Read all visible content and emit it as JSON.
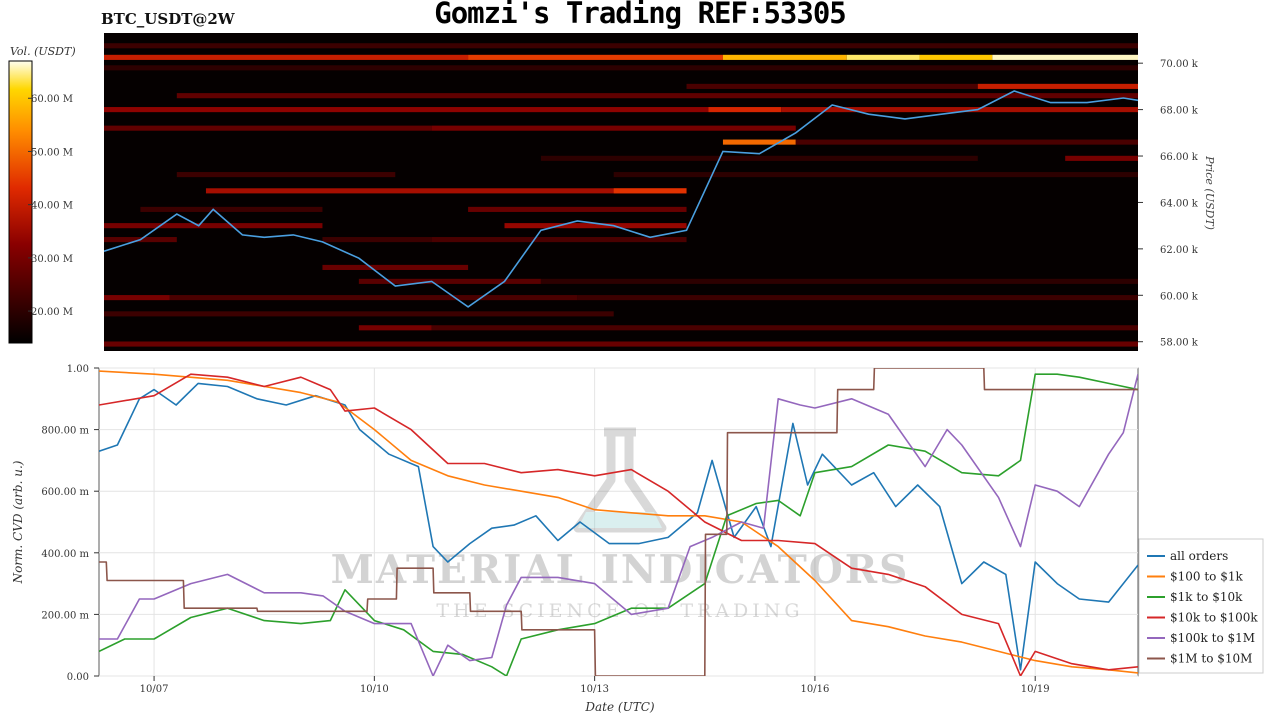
{
  "header": {
    "title": "Gomzi's Trading REF:53305",
    "pair": "BTC_USDT@2W"
  },
  "watermark": {
    "line1": "MATERIAL INDICATORS",
    "line2": "THE SCIENCE OF TRADING"
  },
  "chart_data": [
    {
      "type": "heatmap",
      "title": "BTC_USDT@2W",
      "colorbar": {
        "label": "Vol. (USDT)",
        "ticks": [
          "20.00 M",
          "30.00 M",
          "40.00 M",
          "50.00 M",
          "60.00 M"
        ],
        "range": [
          14,
          67
        ]
      },
      "ylabel": "Price (USDT)",
      "yticks": [
        "58.00 k",
        "60.00 k",
        "62.00 k",
        "64.00 k",
        "66.00 k",
        "68.00 k",
        "70.00 k"
      ],
      "ylim": [
        57.6,
        71.3
      ],
      "xlim": [
        0,
        14.2
      ],
      "price_line": {
        "color": "#4a9fe0",
        "x": [
          0,
          0.5,
          1,
          1.3,
          1.5,
          1.9,
          2.2,
          2.6,
          3.0,
          3.5,
          4.0,
          4.5,
          5.0,
          5.5,
          6.0,
          6.5,
          7.0,
          7.5,
          8.0,
          8.5,
          9.0,
          9.5,
          10.0,
          10.5,
          11.0,
          11.5,
          12.0,
          12.5,
          13.0,
          13.5,
          14.0,
          14.2
        ],
        "y": [
          61.9,
          62.4,
          63.5,
          63.0,
          63.7,
          62.6,
          62.5,
          62.6,
          62.3,
          61.6,
          60.4,
          60.6,
          59.5,
          60.6,
          62.8,
          63.2,
          63.0,
          62.5,
          62.8,
          66.2,
          66.1,
          67.0,
          68.2,
          67.8,
          67.6,
          67.8,
          68.0,
          68.8,
          68.3,
          68.3,
          68.5,
          68.4
        ]
      },
      "bands": [
        {
          "price": 70.75,
          "segments": [
            [
              0,
              14.2,
              22
            ]
          ]
        },
        {
          "price": 70.25,
          "segments": [
            [
              0,
              5,
              40
            ],
            [
              5,
              8.5,
              45
            ],
            [
              8.5,
              10.2,
              58
            ],
            [
              10.2,
              11.2,
              64
            ],
            [
              11.2,
              12.2,
              60
            ],
            [
              12.2,
              14.2,
              66
            ]
          ]
        },
        {
          "price": 69.8,
          "segments": [
            [
              0,
              14.2,
              20
            ]
          ]
        },
        {
          "price": 69.0,
          "segments": [
            [
              8,
              12,
              24
            ],
            [
              12,
              14.2,
              40
            ]
          ]
        },
        {
          "price": 68.6,
          "segments": [
            [
              1,
              14.2,
              27
            ]
          ]
        },
        {
          "price": 68.0,
          "segments": [
            [
              0,
              8.3,
              33
            ],
            [
              8.3,
              9.3,
              42
            ],
            [
              9.3,
              14.2,
              36
            ]
          ]
        },
        {
          "price": 67.2,
          "segments": [
            [
              0,
              4.5,
              27
            ],
            [
              4.5,
              9.5,
              30
            ]
          ]
        },
        {
          "price": 66.6,
          "segments": [
            [
              8.5,
              9.5,
              50
            ],
            [
              9.5,
              14.2,
              24
            ]
          ]
        },
        {
          "price": 65.9,
          "segments": [
            [
              6,
              12,
              20
            ],
            [
              13.2,
              14.2,
              30
            ]
          ]
        },
        {
          "price": 65.2,
          "segments": [
            [
              1,
              4,
              22
            ],
            [
              7,
              14.2,
              20
            ]
          ]
        },
        {
          "price": 64.5,
          "segments": [
            [
              1.4,
              8,
              36
            ],
            [
              7,
              8,
              44
            ]
          ]
        },
        {
          "price": 63.7,
          "segments": [
            [
              0.5,
              3,
              22
            ],
            [
              5,
              8,
              28
            ]
          ]
        },
        {
          "price": 63.0,
          "segments": [
            [
              0,
              3,
              30
            ],
            [
              5.5,
              8,
              34
            ]
          ]
        },
        {
          "price": 62.4,
          "segments": [
            [
              0,
              1,
              26
            ],
            [
              3,
              4.5,
              22
            ],
            [
              4.5,
              8,
              24
            ]
          ]
        },
        {
          "price": 61.2,
          "segments": [
            [
              3,
              5,
              28
            ]
          ]
        },
        {
          "price": 60.6,
          "segments": [
            [
              3.5,
              6,
              26
            ],
            [
              6,
              14.2,
              20
            ]
          ]
        },
        {
          "price": 59.9,
          "segments": [
            [
              0,
              0.9,
              30
            ],
            [
              0.9,
              6.5,
              24
            ],
            [
              6.5,
              14.2,
              22
            ]
          ]
        },
        {
          "price": 59.2,
          "segments": [
            [
              0,
              7,
              22
            ]
          ]
        },
        {
          "price": 58.6,
          "segments": [
            [
              3.5,
              4.5,
              30
            ],
            [
              4.5,
              14.2,
              24
            ]
          ]
        },
        {
          "price": 57.9,
          "segments": [
            [
              0,
              14.2,
              28
            ]
          ]
        }
      ]
    },
    {
      "type": "line",
      "xlabel": "Date (UTC)",
      "ylabel": "Norm. CVD (arb. u.)",
      "xticks": [
        {
          "label": "10/07",
          "x": 1
        },
        {
          "label": "10/10",
          "x": 4
        },
        {
          "label": "10/13",
          "x": 7
        },
        {
          "label": "10/16",
          "x": 10
        },
        {
          "label": "10/19",
          "x": 13
        }
      ],
      "yticks": [
        "0.00",
        "200.00 m",
        "400.00 m",
        "600.00 m",
        "800.00 m",
        "1.00"
      ],
      "xlim": [
        0.25,
        14.4
      ],
      "ylim": [
        0,
        1.0
      ],
      "grid": true,
      "legend": "right",
      "series": [
        {
          "name": "all orders",
          "color": "#1f77b4",
          "x": [
            0.25,
            0.5,
            0.8,
            1.0,
            1.3,
            1.6,
            2.0,
            2.4,
            2.8,
            3.2,
            3.6,
            3.8,
            4.2,
            4.6,
            4.8,
            5.0,
            5.3,
            5.6,
            5.9,
            6.2,
            6.5,
            6.8,
            7.2,
            7.6,
            8.0,
            8.4,
            8.6,
            8.9,
            9.2,
            9.4,
            9.7,
            9.9,
            10.1,
            10.5,
            10.8,
            11.1,
            11.4,
            11.7,
            12.0,
            12.3,
            12.6,
            12.8,
            13.0,
            13.3,
            13.6,
            14.0,
            14.4
          ],
          "y": [
            0.73,
            0.75,
            0.9,
            0.93,
            0.88,
            0.95,
            0.94,
            0.9,
            0.88,
            0.91,
            0.88,
            0.8,
            0.72,
            0.68,
            0.42,
            0.37,
            0.43,
            0.48,
            0.49,
            0.52,
            0.44,
            0.5,
            0.43,
            0.43,
            0.45,
            0.53,
            0.7,
            0.45,
            0.55,
            0.42,
            0.82,
            0.62,
            0.72,
            0.62,
            0.66,
            0.55,
            0.62,
            0.55,
            0.3,
            0.37,
            0.33,
            0.02,
            0.37,
            0.3,
            0.25,
            0.24,
            0.36
          ]
        },
        {
          "name": "$100 to $1k",
          "color": "#ff7f0e",
          "x": [
            0.25,
            1.0,
            2.0,
            3.0,
            3.5,
            4.0,
            4.5,
            5.0,
            5.5,
            6.0,
            6.5,
            7.0,
            7.5,
            8.0,
            8.5,
            9.0,
            9.5,
            10.0,
            10.5,
            11.0,
            11.5,
            12.0,
            12.5,
            13.0,
            13.5,
            14.0,
            14.4
          ],
          "y": [
            0.99,
            0.98,
            0.96,
            0.92,
            0.89,
            0.8,
            0.7,
            0.65,
            0.62,
            0.6,
            0.58,
            0.54,
            0.53,
            0.52,
            0.52,
            0.5,
            0.42,
            0.31,
            0.18,
            0.16,
            0.13,
            0.11,
            0.08,
            0.05,
            0.03,
            0.02,
            0.01
          ]
        },
        {
          "name": "$1k to $10k",
          "color": "#2ca02c",
          "x": [
            0.25,
            0.6,
            1.0,
            1.5,
            2.0,
            2.5,
            3.0,
            3.4,
            3.6,
            4.0,
            4.4,
            4.8,
            5.2,
            5.6,
            5.8,
            6.0,
            6.5,
            7.0,
            7.5,
            8.0,
            8.5,
            8.8,
            9.2,
            9.5,
            9.8,
            10.0,
            10.5,
            11.0,
            11.5,
            12.0,
            12.5,
            12.8,
            13.0,
            13.3,
            13.6,
            14.0,
            14.4
          ],
          "y": [
            0.08,
            0.12,
            0.12,
            0.19,
            0.22,
            0.18,
            0.17,
            0.18,
            0.28,
            0.18,
            0.15,
            0.08,
            0.07,
            0.03,
            0.0,
            0.12,
            0.15,
            0.17,
            0.22,
            0.22,
            0.3,
            0.52,
            0.56,
            0.57,
            0.52,
            0.66,
            0.68,
            0.75,
            0.73,
            0.66,
            0.65,
            0.7,
            0.98,
            0.98,
            0.97,
            0.95,
            0.93
          ]
        },
        {
          "name": "$10k to $100k",
          "color": "#d62728",
          "x": [
            0.25,
            1.0,
            1.5,
            2.0,
            2.5,
            3.0,
            3.4,
            3.6,
            4.0,
            4.5,
            5.0,
            5.5,
            6.0,
            6.5,
            7.0,
            7.5,
            8.0,
            8.5,
            9.0,
            9.5,
            10.0,
            10.5,
            11.0,
            11.5,
            12.0,
            12.5,
            12.8,
            13.0,
            13.5,
            14.0,
            14.4
          ],
          "y": [
            0.88,
            0.91,
            0.98,
            0.97,
            0.94,
            0.97,
            0.93,
            0.86,
            0.87,
            0.8,
            0.69,
            0.69,
            0.66,
            0.67,
            0.65,
            0.67,
            0.6,
            0.5,
            0.44,
            0.44,
            0.43,
            0.35,
            0.33,
            0.29,
            0.2,
            0.17,
            0.0,
            0.08,
            0.04,
            0.02,
            0.03
          ]
        },
        {
          "name": "$100k to $1M",
          "color": "#9467bd",
          "x": [
            0.25,
            0.5,
            0.8,
            1.0,
            1.5,
            2.0,
            2.5,
            3.0,
            3.3,
            3.6,
            4.0,
            4.5,
            4.8,
            5.0,
            5.3,
            5.6,
            5.8,
            6.0,
            6.5,
            7.0,
            7.5,
            8.0,
            8.3,
            8.6,
            9.0,
            9.3,
            9.5,
            9.8,
            10.0,
            10.5,
            11.0,
            11.5,
            11.8,
            12.0,
            12.5,
            12.8,
            13.0,
            13.3,
            13.6,
            14.0,
            14.2,
            14.4
          ],
          "y": [
            0.12,
            0.12,
            0.25,
            0.25,
            0.3,
            0.33,
            0.27,
            0.27,
            0.26,
            0.21,
            0.17,
            0.17,
            0.0,
            0.1,
            0.05,
            0.06,
            0.23,
            0.32,
            0.32,
            0.3,
            0.2,
            0.22,
            0.42,
            0.45,
            0.5,
            0.48,
            0.9,
            0.88,
            0.87,
            0.9,
            0.85,
            0.68,
            0.8,
            0.75,
            0.58,
            0.42,
            0.62,
            0.6,
            0.55,
            0.72,
            0.79,
            0.98
          ]
        },
        {
          "name": "$1M to $10M",
          "color": "#8c564b",
          "x": [
            0.25,
            0.35,
            0.36,
            1.4,
            1.41,
            2.4,
            2.41,
            3.9,
            3.91,
            4.3,
            4.31,
            4.8,
            4.81,
            5.3,
            5.31,
            6.0,
            6.01,
            7.0,
            7.01,
            7.4,
            7.41,
            8.5,
            8.51,
            8.8,
            8.81,
            9.0,
            9.01,
            10.3,
            10.31,
            10.8,
            10.81,
            11.5,
            11.51,
            12.3,
            12.31,
            14.4
          ],
          "y": [
            0.37,
            0.37,
            0.31,
            0.31,
            0.22,
            0.22,
            0.21,
            0.21,
            0.25,
            0.25,
            0.35,
            0.35,
            0.27,
            0.27,
            0.21,
            0.21,
            0.15,
            0.15,
            0.0,
            0.0,
            0.0,
            0.0,
            0.46,
            0.46,
            0.79,
            0.79,
            0.79,
            0.79,
            0.93,
            0.93,
            1.0,
            1.0,
            1.0,
            1.0,
            0.93,
            0.93
          ]
        }
      ]
    }
  ]
}
